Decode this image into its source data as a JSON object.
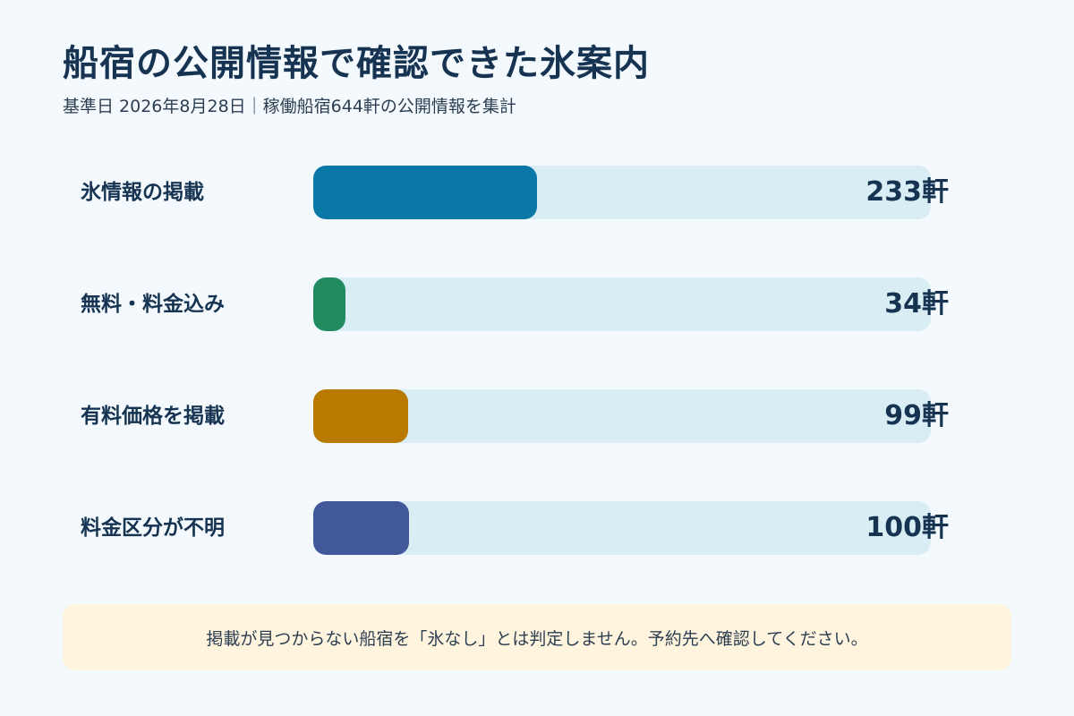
{
  "title": "船宿の公開情報で確認できた氷案内",
  "subtitle": "基準日 2026年8月28日｜稼働船宿644軒の公開情報を集計",
  "note": "掲載が見つからない船宿を「氷なし」とは判定しません。予約先へ確認してください。",
  "chart_data": {
    "type": "bar",
    "orientation": "horizontal",
    "total": 644,
    "unit": "軒",
    "categories": [
      "氷情報の掲載",
      "無料・料金込み",
      "有料価格を掲載",
      "料金区分が不明"
    ],
    "values": [
      233,
      34,
      99,
      100
    ],
    "value_labels": [
      "233軒",
      "34軒",
      "99軒",
      "100軒"
    ],
    "colors": [
      "#0a78a6",
      "#218a5f",
      "#b87a00",
      "#41589a"
    ],
    "xlim": [
      0,
      644
    ]
  }
}
